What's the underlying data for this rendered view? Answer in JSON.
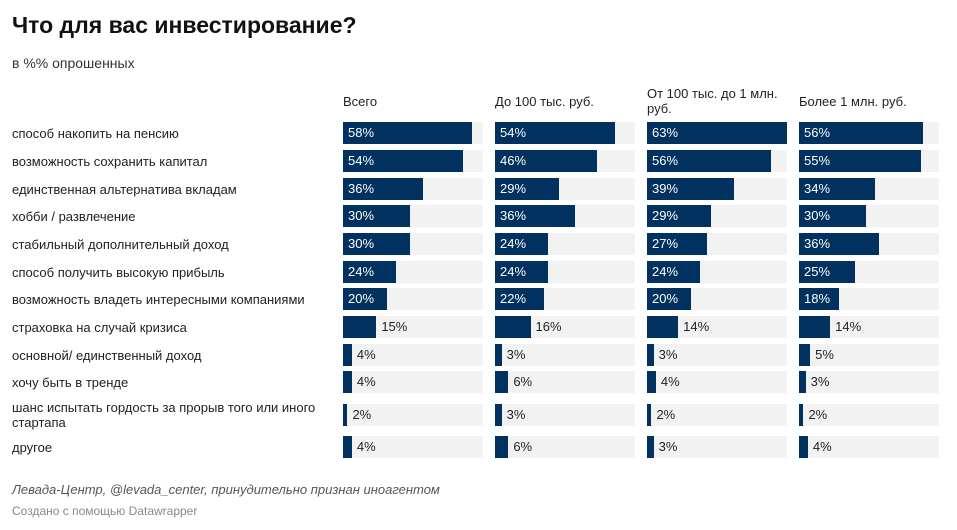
{
  "chart_data": {
    "type": "bar",
    "title": "Что для вас инвестирование?",
    "subtitle": "в %% опрошенных",
    "unit": "%",
    "xlim": [
      0,
      63
    ],
    "categories": [
      "способ накопить на пенсию",
      "возможность сохранить капитал",
      "единственная альтернатива вкладам",
      "хобби / развлечение",
      "стабильный дополнительный доход",
      "способ получить высокую прибыль",
      "возможность владеть интересными компаниями",
      "страховка на случай кризиса",
      "основной/ единственный доход",
      "хочу быть в тренде",
      "шанс испытать гордость за прорыв того или иного стартапа",
      "другое"
    ],
    "series": [
      {
        "name": "Всего",
        "values": [
          58,
          54,
          36,
          30,
          30,
          24,
          20,
          15,
          4,
          4,
          2,
          4
        ]
      },
      {
        "name": "До 100 тыс. руб.",
        "values": [
          54,
          46,
          29,
          36,
          24,
          24,
          22,
          16,
          3,
          6,
          3,
          6
        ]
      },
      {
        "name": "От 100 тыс. до 1 млн. руб.",
        "values": [
          63,
          56,
          39,
          29,
          27,
          24,
          20,
          14,
          3,
          4,
          2,
          3
        ]
      },
      {
        "name": "Более 1 млн. руб.",
        "values": [
          56,
          55,
          34,
          30,
          36,
          25,
          18,
          14,
          5,
          3,
          2,
          4
        ]
      }
    ],
    "bar_color": "#00315f",
    "background_color": "#f2f2f2"
  },
  "footer": {
    "source": "Левада-Центр, @levada_center, принудительно признан иноагентом",
    "credit": "Создано с помощью Datawrapper"
  }
}
